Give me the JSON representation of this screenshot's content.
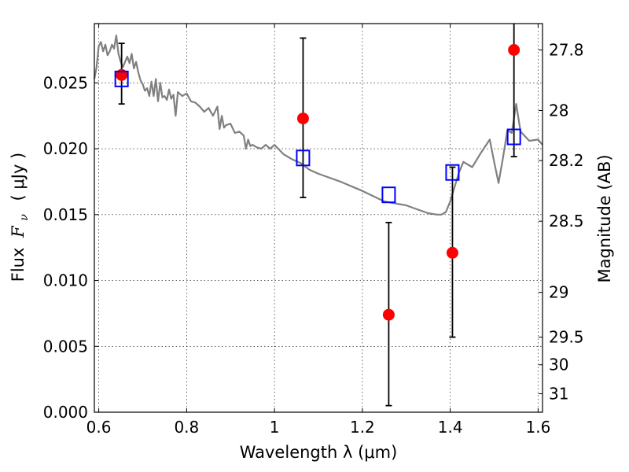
{
  "chart_data": {
    "type": "scatter",
    "xlabel": "Wavelength  λ (μm)",
    "ylabel": "Flux  F_ν  ( μJy )",
    "ylabel_parts": {
      "prefix": "Flux ",
      "symbol": "F",
      "subscript": "ν",
      "unit": "( μJy )"
    },
    "y2label": "Magnitude (AB)",
    "xlim": [
      0.59,
      1.61
    ],
    "ylim": [
      0.0,
      0.0295
    ],
    "grid": true,
    "xticks": [
      0.6,
      0.8,
      1.0,
      1.2,
      1.4,
      1.6
    ],
    "xtick_labels": [
      "0.6",
      "0.8",
      "1",
      "1.2",
      "1.4",
      "1.6"
    ],
    "yticks": [
      0.0,
      0.005,
      0.01,
      0.015,
      0.02,
      0.025
    ],
    "ytick_labels": [
      "0.000",
      "0.005",
      "0.010",
      "0.015",
      "0.020",
      "0.025"
    ],
    "y2ticks": [
      {
        "label": "27.8",
        "flux": 0.0275
      },
      {
        "label": "28",
        "flux": 0.0229
      },
      {
        "label": "28.2",
        "flux": 0.0191
      },
      {
        "label": "28.5",
        "flux": 0.0145
      },
      {
        "label": "29",
        "flux": 0.0091
      },
      {
        "label": "29.5",
        "flux": 0.0057
      },
      {
        "label": "30",
        "flux": 0.0036
      },
      {
        "label": "31",
        "flux": 0.0014
      }
    ],
    "series": [
      {
        "kind": "line",
        "color": "#808080",
        "x": [
          0.59,
          0.595,
          0.6,
          0.605,
          0.61,
          0.615,
          0.62,
          0.625,
          0.63,
          0.635,
          0.64,
          0.645,
          0.65,
          0.655,
          0.66,
          0.665,
          0.67,
          0.675,
          0.68,
          0.685,
          0.69,
          0.695,
          0.7,
          0.705,
          0.71,
          0.715,
          0.72,
          0.725,
          0.73,
          0.735,
          0.74,
          0.745,
          0.75,
          0.755,
          0.76,
          0.765,
          0.77,
          0.775,
          0.78,
          0.79,
          0.8,
          0.81,
          0.82,
          0.83,
          0.84,
          0.85,
          0.86,
          0.87,
          0.875,
          0.88,
          0.885,
          0.89,
          0.9,
          0.91,
          0.92,
          0.93,
          0.935,
          0.94,
          0.945,
          0.95,
          0.96,
          0.97,
          0.98,
          0.99,
          1.0,
          1.02,
          1.04,
          1.06,
          1.08,
          1.1,
          1.15,
          1.2,
          1.25,
          1.3,
          1.35,
          1.37,
          1.38,
          1.39,
          1.4,
          1.41,
          1.42,
          1.43,
          1.45,
          1.47,
          1.49,
          1.5,
          1.51,
          1.52,
          1.53,
          1.54,
          1.55,
          1.56,
          1.58,
          1.6,
          1.61
        ],
        "y": [
          0.0253,
          0.0262,
          0.0278,
          0.0281,
          0.0274,
          0.0279,
          0.0271,
          0.0274,
          0.0279,
          0.0276,
          0.0286,
          0.0272,
          0.0266,
          0.0262,
          0.0266,
          0.027,
          0.0265,
          0.0272,
          0.0261,
          0.0266,
          0.0258,
          0.0252,
          0.0249,
          0.0244,
          0.0246,
          0.024,
          0.0251,
          0.024,
          0.0253,
          0.0236,
          0.025,
          0.0239,
          0.024,
          0.0237,
          0.0245,
          0.0238,
          0.0241,
          0.0225,
          0.0243,
          0.024,
          0.0242,
          0.0236,
          0.0235,
          0.0232,
          0.0228,
          0.0231,
          0.0225,
          0.0232,
          0.0215,
          0.0225,
          0.0216,
          0.0218,
          0.0219,
          0.0212,
          0.0213,
          0.021,
          0.02,
          0.0207,
          0.0202,
          0.0203,
          0.0201,
          0.02,
          0.0203,
          0.02,
          0.0203,
          0.0196,
          0.0192,
          0.0189,
          0.0184,
          0.0181,
          0.0175,
          0.0168,
          0.016,
          0.0157,
          0.0151,
          0.015,
          0.015,
          0.0152,
          0.016,
          0.0171,
          0.0182,
          0.019,
          0.0186,
          0.0197,
          0.0207,
          0.019,
          0.0174,
          0.0193,
          0.0214,
          0.0212,
          0.0234,
          0.0213,
          0.0206,
          0.0207,
          0.0203
        ]
      },
      {
        "kind": "scatter",
        "marker": "circle",
        "color": "#ff0000",
        "x": [
          0.652,
          1.065,
          1.26,
          1.405,
          1.545
        ],
        "y": [
          0.0256,
          0.0223,
          0.0074,
          0.0121,
          0.0275
        ],
        "yerr_low": [
          0.0234,
          0.0163,
          0.0005,
          0.0057,
          0.0194
        ],
        "yerr_high": [
          0.028,
          0.0284,
          0.0144,
          0.0186,
          0.0305
        ]
      },
      {
        "kind": "scatter",
        "marker": "square",
        "color": "#0000ff",
        "x": [
          0.652,
          1.065,
          1.26,
          1.405,
          1.545
        ],
        "y": [
          0.0253,
          0.0193,
          0.0165,
          0.0182,
          0.0209
        ]
      }
    ]
  }
}
